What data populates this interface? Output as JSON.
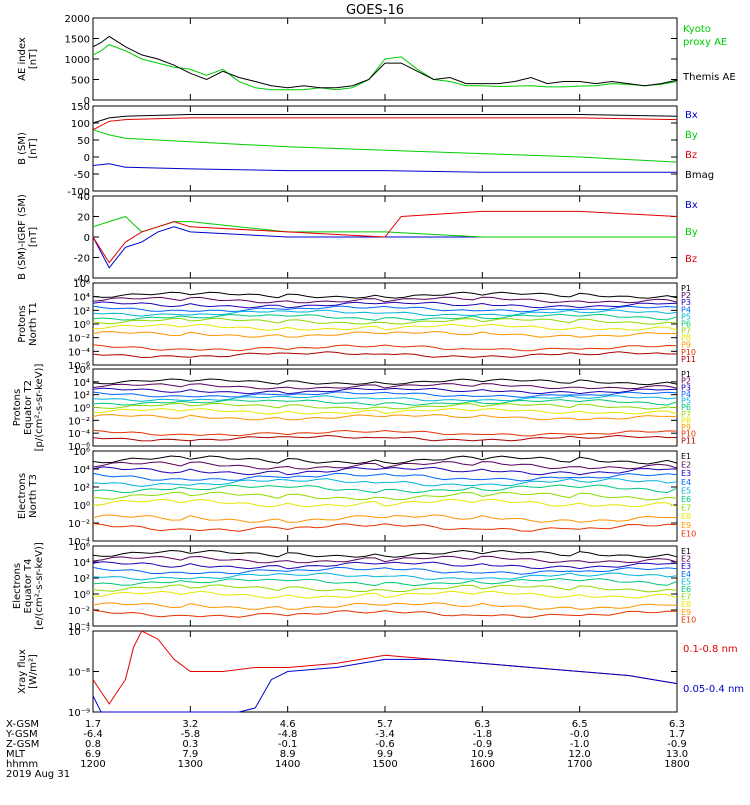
{
  "title": "GOES-16",
  "colors": {
    "black": "#000000",
    "red": "#e00000",
    "green": "#00cc00",
    "blue": "#0000cc",
    "p1": "#000000",
    "p2": "#5a005a",
    "p3": "#1e00b4",
    "p4": "#0064ff",
    "p5": "#00b4dc",
    "p6": "#00c878",
    "p7": "#8cdc00",
    "p8": "#e6e600",
    "p9": "#ff9600",
    "p10": "#e63200",
    "p11": "#aa0000"
  },
  "chart_data": [
    {
      "type": "line",
      "ylabel": "AE index [nT]",
      "ylim": [
        0,
        2000
      ],
      "yticks": [
        "2000",
        "1500",
        "1000",
        "500",
        "0"
      ],
      "yticks_vals": [
        2000,
        1500,
        1000,
        500,
        0
      ],
      "series": [
        {
          "name": "Kyoto proxy AE",
          "color": "#00cc00",
          "x": [
            1200,
            1205,
            1210,
            1220,
            1230,
            1240,
            1250,
            1300,
            1310,
            1320,
            1330,
            1340,
            1350,
            1400,
            1410,
            1420,
            1430,
            1440,
            1450,
            1500,
            1510,
            1520,
            1530,
            1540,
            1550,
            1600,
            1610,
            1620,
            1630,
            1640,
            1650,
            1700,
            1710,
            1720,
            1730,
            1740,
            1750,
            1800
          ],
          "y": [
            1100,
            1200,
            1350,
            1200,
            1000,
            900,
            800,
            750,
            600,
            750,
            450,
            300,
            250,
            250,
            250,
            300,
            250,
            300,
            500,
            1000,
            1050,
            750,
            500,
            450,
            350,
            350,
            330,
            340,
            350,
            320,
            320,
            340,
            350,
            400,
            380,
            350,
            380,
            450
          ]
        },
        {
          "name": "Themis AE",
          "color": "#000000",
          "x": [
            1200,
            1205,
            1210,
            1220,
            1230,
            1240,
            1250,
            1300,
            1310,
            1320,
            1330,
            1340,
            1350,
            1400,
            1410,
            1420,
            1430,
            1440,
            1450,
            1500,
            1510,
            1520,
            1530,
            1540,
            1550,
            1600,
            1610,
            1620,
            1630,
            1640,
            1650,
            1700,
            1710,
            1720,
            1730,
            1740,
            1750,
            1800
          ],
          "y": [
            1300,
            1400,
            1550,
            1300,
            1100,
            1000,
            850,
            650,
            500,
            700,
            550,
            450,
            350,
            300,
            350,
            300,
            300,
            350,
            500,
            900,
            900,
            700,
            500,
            550,
            400,
            400,
            400,
            450,
            550,
            400,
            450,
            450,
            400,
            450,
            400,
            350,
            400,
            480
          ]
        }
      ]
    },
    {
      "type": "line",
      "ylabel": "B (SM) [nT]",
      "ylim": [
        -100,
        150
      ],
      "yticks": [
        "150",
        "100",
        "50",
        "0",
        "-50",
        "-100"
      ],
      "yticks_vals": [
        150,
        100,
        50,
        0,
        -50,
        -100
      ],
      "series": [
        {
          "name": "Bx",
          "color": "#0000cc",
          "x": [
            1200,
            1210,
            1220,
            1300,
            1400,
            1500,
            1600,
            1700,
            1800
          ],
          "y": [
            -25,
            -20,
            -30,
            -35,
            -40,
            -40,
            -45,
            -45,
            -45
          ]
        },
        {
          "name": "By",
          "color": "#00cc00",
          "x": [
            1200,
            1210,
            1220,
            1300,
            1400,
            1500,
            1600,
            1700,
            1800
          ],
          "y": [
            80,
            65,
            55,
            45,
            30,
            20,
            10,
            0,
            -15
          ]
        },
        {
          "name": "Bz",
          "color": "#e00000",
          "x": [
            1200,
            1210,
            1220,
            1300,
            1400,
            1500,
            1600,
            1700,
            1800
          ],
          "y": [
            80,
            105,
            110,
            115,
            115,
            115,
            115,
            115,
            110
          ]
        },
        {
          "name": "Bmag",
          "color": "#000000",
          "x": [
            1200,
            1210,
            1220,
            1300,
            1400,
            1500,
            1600,
            1700,
            1800
          ],
          "y": [
            100,
            115,
            120,
            125,
            125,
            125,
            125,
            125,
            120
          ]
        }
      ]
    },
    {
      "type": "line",
      "ylabel": "B (SM)-IGRF (SM) [nT]",
      "ylim": [
        -40,
        40
      ],
      "yticks": [
        "40",
        "20",
        "0",
        "-20",
        "-40"
      ],
      "yticks_vals": [
        40,
        20,
        0,
        -20,
        -40
      ],
      "series": [
        {
          "name": "Bx",
          "color": "#0000cc",
          "x": [
            1200,
            1210,
            1220,
            1230,
            1240,
            1250,
            1300,
            1400,
            1500,
            1600,
            1700,
            1800
          ],
          "y": [
            0,
            -30,
            -10,
            -5,
            5,
            10,
            5,
            0,
            0,
            0,
            0,
            0
          ]
        },
        {
          "name": "By",
          "color": "#00cc00",
          "x": [
            1200,
            1210,
            1220,
            1230,
            1240,
            1250,
            1300,
            1400,
            1500,
            1600,
            1700,
            1800
          ],
          "y": [
            10,
            15,
            20,
            5,
            10,
            15,
            15,
            5,
            5,
            0,
            0,
            0
          ]
        },
        {
          "name": "Bz",
          "color": "#e00000",
          "x": [
            1200,
            1210,
            1220,
            1230,
            1240,
            1250,
            1300,
            1400,
            1500,
            1510,
            1600,
            1700,
            1800
          ],
          "y": [
            0,
            -25,
            -5,
            5,
            10,
            15,
            10,
            5,
            0,
            20,
            25,
            25,
            20
          ]
        }
      ]
    },
    {
      "type": "line",
      "ylabel": "Protons North T1",
      "log": true,
      "yticks": [
        "10⁶",
        "10⁴",
        "10²",
        "10⁰",
        "10⁻²",
        "10⁻⁴",
        "10⁻⁶"
      ],
      "yticks_vals": [
        6,
        4,
        2,
        0,
        -2,
        -4,
        -6
      ],
      "legend": [
        "P1",
        "P2",
        "P3",
        "P4",
        "P5",
        "P6",
        "P7",
        "P8",
        "P9",
        "P10",
        "P11"
      ],
      "levels": [
        4.2,
        3.5,
        2.8,
        2.2,
        1.6,
        1.0,
        0.4,
        -0.5,
        -1.5,
        -3.5,
        -4.5
      ]
    },
    {
      "type": "line",
      "ylabel": "Protons Equator T2 [p/(cm²-s-sr-keV)]",
      "log": true,
      "yticks": [
        "10⁶",
        "10⁴",
        "10²",
        "10⁰",
        "10⁻²",
        "10⁻⁴",
        "10⁻⁶"
      ],
      "yticks_vals": [
        6,
        4,
        2,
        0,
        -2,
        -4,
        -6
      ],
      "legend": [
        "P1",
        "P2",
        "P3",
        "P4",
        "P5",
        "P6",
        "P7",
        "P8",
        "P9",
        "P10",
        "P11"
      ],
      "levels": [
        4.0,
        3.3,
        2.6,
        2.0,
        1.4,
        0.8,
        0.2,
        -0.6,
        -1.5,
        -4.0,
        -4.8
      ]
    },
    {
      "type": "line",
      "ylabel": "Electrons North T3",
      "log": true,
      "yticks": [
        "10⁶",
        "10⁴",
        "10²",
        "10⁰",
        "10⁻²",
        "10⁻⁴"
      ],
      "yticks_vals": [
        6,
        4,
        2,
        0,
        -2,
        -4
      ],
      "legend": [
        "E1",
        "E2",
        "E3",
        "E4",
        "E5",
        "E6",
        "E7",
        "E8",
        "E9",
        "E10"
      ],
      "levels": [
        5.0,
        4.4,
        3.8,
        3.1,
        2.5,
        1.8,
        1.0,
        0.2,
        -1.5,
        -2.5
      ]
    },
    {
      "type": "line",
      "ylabel": "Electrons Equator T4 [e/(cm²-s-sr-keV)]",
      "log": true,
      "yticks": [
        "10⁶",
        "10⁴",
        "10²",
        "10⁰",
        "10⁻²",
        "10⁻⁴"
      ],
      "yticks_vals": [
        6,
        4,
        2,
        0,
        -2,
        -4
      ],
      "legend": [
        "E1",
        "E2",
        "E3",
        "E4",
        "E5",
        "E6",
        "E7",
        "E8",
        "E9",
        "E10"
      ],
      "levels": [
        5.0,
        4.3,
        3.6,
        2.9,
        2.2,
        1.5,
        0.7,
        -0.1,
        -1.5,
        -2.5
      ]
    },
    {
      "type": "line",
      "ylabel": "Xray flux [W/m²]",
      "log": true,
      "yticks": [
        "10⁻⁷",
        "10⁻⁸",
        "10⁻⁹"
      ],
      "yticks_vals": [
        -7,
        -8,
        -9
      ],
      "series": [
        {
          "name": "0.1-0.8 nm",
          "color": "#e00000",
          "x": [
            1200,
            1210,
            1220,
            1225,
            1230,
            1240,
            1250,
            1300,
            1320,
            1340,
            1400,
            1430,
            1500,
            1530,
            1600,
            1630,
            1700,
            1730,
            1800
          ],
          "y": [
            -8.2,
            -8.8,
            -8.2,
            -7.4,
            -7.0,
            -7.2,
            -7.7,
            -8.0,
            -8.0,
            -7.9,
            -7.9,
            -7.8,
            -7.6,
            -7.7,
            -7.8,
            -7.9,
            -8.0,
            -8.1,
            -8.3
          ]
        },
        {
          "name": "0.05-0.4 nm",
          "color": "#0000cc",
          "x": [
            1200,
            1205,
            1210,
            1212,
            1330,
            1340,
            1350,
            1400,
            1430,
            1500,
            1530,
            1600,
            1630,
            1700,
            1730,
            1800
          ],
          "y": [
            -8.6,
            -9.0,
            -9.3,
            -9.6,
            -9.5,
            -8.9,
            -8.2,
            -8.0,
            -7.9,
            -7.7,
            -7.7,
            -7.8,
            -7.9,
            -8.0,
            -8.1,
            -8.3
          ]
        }
      ]
    }
  ],
  "panel_labels": {
    "p0": [
      "Kyoto",
      "proxy AE",
      "Themis AE"
    ],
    "p1": [
      "Bx",
      "By",
      "Bz",
      "Bmag"
    ],
    "p2": [
      "Bx",
      "By",
      "Bz"
    ],
    "p7": [
      "0.1-0.8 nm",
      "0.05-0.4 nm"
    ]
  },
  "ylabels": {
    "p0": [
      "AE index",
      "[nT]"
    ],
    "p1": [
      "B (SM)",
      "[nT]"
    ],
    "p2": [
      "B (SM)-IGRF (SM)",
      "[nT]"
    ],
    "p3": [
      "Protons",
      "North T1"
    ],
    "p4": [
      "Protons",
      "Equator T2",
      "[p/(cm²-s-sr-keV)]"
    ],
    "p5": [
      "Electrons",
      "North T3"
    ],
    "p6": [
      "Electrons",
      "Equator T4",
      "[e/(cm²-s-sr-keV)]"
    ],
    "p7": [
      "Xray flux",
      "[W/m²]"
    ]
  },
  "ephemeris": {
    "rows": [
      "X-GSM",
      "Y-GSM",
      "Z-GSM",
      "MLT",
      "hhmm"
    ],
    "date": "2019 Aug 31",
    "values": [
      [
        "1.7",
        "3.2",
        "4.6",
        "5.7",
        "6.3",
        "6.5",
        "6.3"
      ],
      [
        "-6.4",
        "-5.8",
        "-4.8",
        "-3.4",
        "-1.8",
        "-0.0",
        "1.7"
      ],
      [
        "0.8",
        "0.3",
        "-0.1",
        "-0.6",
        "-0.9",
        "-1.0",
        "-0.9"
      ],
      [
        "6.9",
        "7.9",
        "8.9",
        "9.9",
        "10.9",
        "12.0",
        "13.0"
      ],
      [
        "1200",
        "1300",
        "1400",
        "1500",
        "1600",
        "1700",
        "1800"
      ]
    ]
  }
}
